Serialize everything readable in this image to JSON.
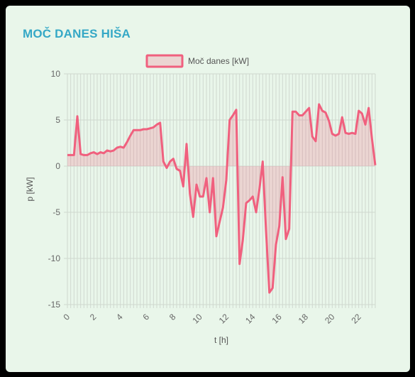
{
  "card": {
    "title": "MOČ DANES HIŠA"
  },
  "colors": {
    "accent_title": "#35a8c6",
    "line": "#f0607e",
    "fill": "rgba(240,96,126,0.22)",
    "card_bg": "#e9f6ea",
    "grid": "#cfd8cf"
  },
  "chart_data": {
    "type": "area",
    "title": "",
    "xlabel": "t [h]",
    "ylabel": "p [kW]",
    "ylim": [
      -15,
      10
    ],
    "xlim": [
      0,
      23.25
    ],
    "yticks": [
      10,
      5,
      0,
      -5,
      -10,
      -15
    ],
    "xticks": [
      0,
      2,
      4,
      6,
      8,
      10,
      12,
      14,
      16,
      18,
      20,
      22
    ],
    "legend": {
      "position": "top",
      "label": "Moč danes [kW]"
    },
    "grid": true,
    "series": [
      {
        "name": "Moč danes [kW]",
        "x": [
          0,
          0.25,
          0.5,
          0.75,
          1,
          1.25,
          1.5,
          1.75,
          2,
          2.25,
          2.5,
          2.75,
          3,
          3.25,
          3.5,
          3.75,
          4,
          4.25,
          4.5,
          4.75,
          5,
          5.25,
          5.5,
          5.75,
          6,
          6.25,
          6.5,
          6.75,
          7,
          7.25,
          7.5,
          7.75,
          8,
          8.25,
          8.5,
          8.75,
          9,
          9.25,
          9.5,
          9.75,
          10,
          10.25,
          10.5,
          10.75,
          11,
          11.25,
          11.5,
          11.75,
          12,
          12.25,
          12.5,
          12.75,
          13,
          13.25,
          13.5,
          13.75,
          14,
          14.25,
          14.5,
          14.75,
          15,
          15.25,
          15.5,
          15.75,
          16,
          16.25,
          16.5,
          16.75,
          17,
          17.25,
          17.5,
          17.75,
          18,
          18.25,
          18.5,
          18.75,
          19,
          19.25,
          19.5,
          19.75,
          20,
          20.25,
          20.5,
          20.75,
          21,
          21.25,
          21.5,
          21.75,
          22,
          22.25,
          22.5,
          22.75,
          23,
          23.25
        ],
        "values": [
          1.2,
          1.2,
          1.2,
          5.4,
          1.3,
          1.2,
          1.2,
          1.4,
          1.5,
          1.3,
          1.5,
          1.4,
          1.7,
          1.6,
          1.7,
          2.0,
          2.1,
          2.0,
          2.6,
          3.3,
          3.9,
          3.9,
          3.9,
          4.0,
          4.0,
          4.1,
          4.2,
          4.5,
          4.7,
          0.5,
          -0.2,
          0.5,
          0.8,
          -0.3,
          -0.5,
          -2.2,
          2.4,
          -3.0,
          -5.5,
          -2.0,
          -3.3,
          -3.3,
          -1.3,
          -5.0,
          -1.3,
          -7.6,
          -6.0,
          -4.5,
          -1.5,
          5.0,
          5.5,
          6.1,
          -10.6,
          -8.0,
          -4.0,
          -3.7,
          -3.3,
          -5.0,
          -2.5,
          0.5,
          -7.0,
          -13.7,
          -13.2,
          -8.5,
          -6.5,
          -1.2,
          -7.9,
          -6.8,
          5.9,
          5.9,
          5.5,
          5.5,
          5.9,
          6.3,
          3.2,
          2.7,
          6.7,
          6.0,
          5.8,
          4.9,
          3.5,
          3.3,
          3.5,
          5.3,
          3.6,
          3.5,
          3.6,
          3.5,
          6.0,
          5.7,
          4.5,
          6.3,
          3.0,
          0.1
        ]
      }
    ]
  }
}
